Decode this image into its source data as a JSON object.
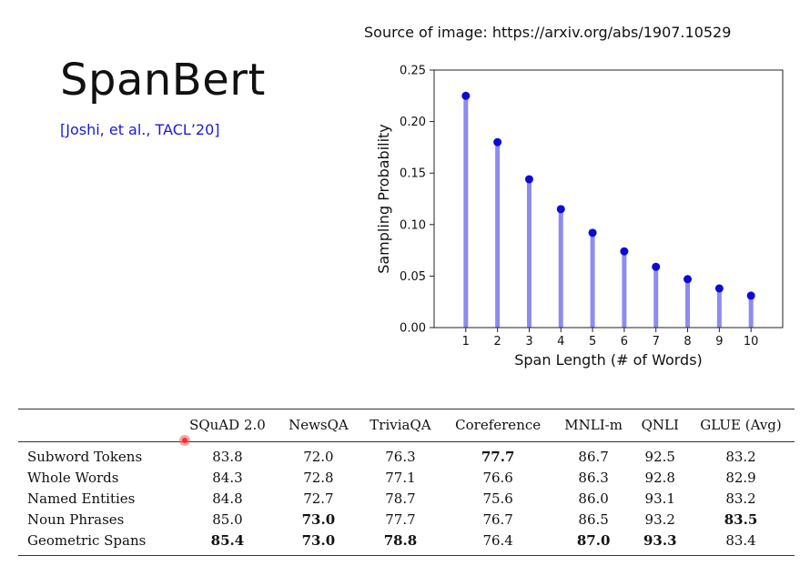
{
  "source_text": "Source of image: https://arxiv.org/abs/1907.10529",
  "title": "SpanBert",
  "citation": "[Joshi, et al., TACL’20]",
  "chart_data": {
    "type": "stem",
    "x": [
      1,
      2,
      3,
      4,
      5,
      6,
      7,
      8,
      9,
      10
    ],
    "values": [
      0.225,
      0.18,
      0.144,
      0.115,
      0.092,
      0.074,
      0.059,
      0.047,
      0.038,
      0.031
    ],
    "xlabel": "Span Length (# of Words)",
    "ylabel": "Sampling Probability",
    "ylim": [
      0,
      0.25
    ],
    "xlim": [
      0,
      11
    ],
    "yticks": [
      "0.00",
      "0.05",
      "0.10",
      "0.15",
      "0.20",
      "0.25"
    ],
    "xticks": [
      "1",
      "2",
      "3",
      "4",
      "5",
      "6",
      "7",
      "8",
      "9",
      "10"
    ],
    "stem_color": "#8c8cf0",
    "marker_color": "#0b0bd6",
    "grid": false
  },
  "table": {
    "headers": [
      "",
      "SQuAD 2.0",
      "NewsQA",
      "TriviaQA",
      "Coreference",
      "MNLI-m",
      "QNLI",
      "GLUE (Avg)"
    ],
    "rows": [
      {
        "label": "Subword Tokens",
        "values": [
          "83.8",
          "72.0",
          "76.3",
          "77.7",
          "86.7",
          "92.5",
          "83.2"
        ],
        "bold": [
          false,
          false,
          false,
          true,
          false,
          false,
          false
        ]
      },
      {
        "label": "Whole Words",
        "values": [
          "84.3",
          "72.8",
          "77.1",
          "76.6",
          "86.3",
          "92.8",
          "82.9"
        ],
        "bold": [
          false,
          false,
          false,
          false,
          false,
          false,
          false
        ]
      },
      {
        "label": "Named Entities",
        "values": [
          "84.8",
          "72.7",
          "78.7",
          "75.6",
          "86.0",
          "93.1",
          "83.2"
        ],
        "bold": [
          false,
          false,
          false,
          false,
          false,
          false,
          false
        ]
      },
      {
        "label": "Noun Phrases",
        "values": [
          "85.0",
          "73.0",
          "77.7",
          "76.7",
          "86.5",
          "93.2",
          "83.5"
        ],
        "bold": [
          false,
          true,
          false,
          false,
          false,
          false,
          true
        ]
      },
      {
        "label": "Geometric Spans",
        "values": [
          "85.4",
          "73.0",
          "78.8",
          "76.4",
          "87.0",
          "93.3",
          "83.4"
        ],
        "bold": [
          true,
          true,
          true,
          false,
          true,
          true,
          false
        ]
      }
    ]
  }
}
